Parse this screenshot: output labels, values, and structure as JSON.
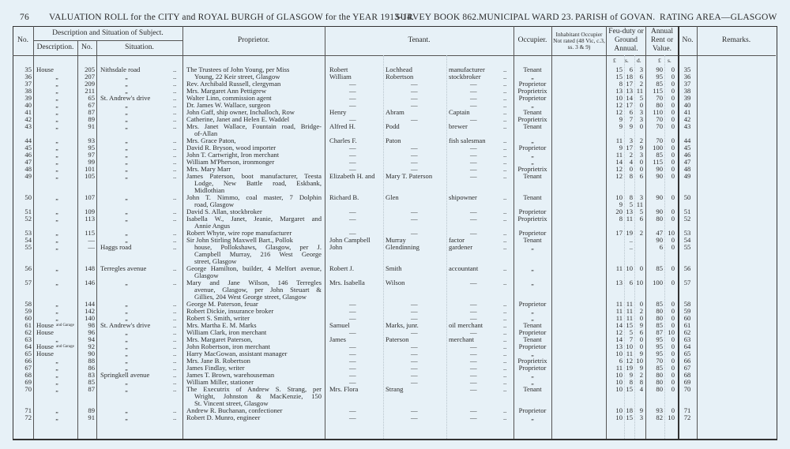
{
  "header": {
    "page_number": "76",
    "title": "VALUATION ROLL for the CITY and ROYAL BURGH of GLASGOW for the YEAR 1913-14.",
    "survey_book": "SURVEY BOOK 862.",
    "ward": "MUNICIPAL WARD 23.",
    "parish": "PARISH of GOVAN.",
    "rating_area": "RATING AREA—GLASGOW"
  },
  "columns": {
    "no": "No.",
    "desc_group": "Description and Situation of Subject.",
    "description": "Description.",
    "number": "No.",
    "situation": "Situation.",
    "proprietor": "Proprietor.",
    "tenant": "Tenant.",
    "occupier": "Occupier.",
    "inhabitant": "Inhabitant Occupier Not rated (48 Vic, c.3, ss. 3 & 9)",
    "feu_duty": "Feu-duty or Ground Annual.",
    "annual": "Annual Rent or Value.",
    "no_right": "No.",
    "remarks": "Remarks.",
    "units_feu": [
      "£",
      "s.",
      "d."
    ],
    "units_annual": [
      "£",
      "s."
    ]
  },
  "leader": "..",
  "rows": [
    {
      "no": "35",
      "desc": "House",
      "num": "205",
      "sit": "Nithsdale road",
      "prop": [
        "The Trustees of John Young, per Miss"
      ],
      "tf": "Robert",
      "ts": "Lochhead",
      "to": "manufacturer",
      "occ": "Tenant",
      "feu": [
        [
          "15",
          "6",
          "3"
        ]
      ],
      "ann": [
        "90",
        "0"
      ]
    },
    {
      "no": "36",
      "desc": "„",
      "num": "207",
      "sit": "„",
      "prop": [
        "Young, 22 Keir street, Glasgow"
      ],
      "cont": true,
      "tf": "William",
      "ts": "Robertson",
      "to": "stockbroker",
      "occ": "„",
      "feu": [
        [
          "15",
          "18",
          "6"
        ]
      ],
      "ann": [
        "95",
        "0"
      ]
    },
    {
      "no": "37",
      "desc": "„",
      "num": "209",
      "sit": "„",
      "prop": [
        "Rev. Archibald Russell, clergyman"
      ],
      "tf": "—",
      "ts": "—",
      "to": "—",
      "occ": "Proprietor",
      "feu": [
        [
          "8",
          "17",
          "2"
        ]
      ],
      "ann": [
        "85",
        "0"
      ]
    },
    {
      "no": "38",
      "desc": "„",
      "num": "211",
      "sit": "„",
      "prop": [
        "Mrs. Margaret Ann Pettigrew"
      ],
      "tf": "—",
      "ts": "—",
      "to": "—",
      "occ": "Proprietrix",
      "feu": [
        [
          "13",
          "13",
          "11"
        ]
      ],
      "ann": [
        "115",
        "0"
      ]
    },
    {
      "no": "39",
      "desc": "„",
      "num": "65",
      "sit": "St. Andrew's drive",
      "prop": [
        "Walter Linn, commission agent"
      ],
      "tf": "—",
      "ts": "—",
      "to": "—",
      "occ": "Proprietor",
      "feu": [
        [
          "10",
          "14",
          "5"
        ]
      ],
      "ann": [
        "70",
        "0"
      ]
    },
    {
      "no": "40",
      "desc": "„",
      "num": "67",
      "sit": "„",
      "prop": [
        "Dr. James W. Wallace, surgeon"
      ],
      "tf": "—",
      "ts": "—",
      "to": "—",
      "occ": "„",
      "feu": [
        [
          "12",
          "17",
          "0"
        ]
      ],
      "ann": [
        "80",
        "0"
      ]
    },
    {
      "no": "41",
      "desc": "„",
      "num": "87",
      "sit": "„",
      "prop": [
        "John Gaff, ship owner, Inchalloch, Row"
      ],
      "tf": "Henry",
      "ts": "Abram",
      "to": "Captain",
      "occ": "Tenant",
      "feu": [
        [
          "12",
          "6",
          "3"
        ]
      ],
      "ann": [
        "110",
        "0"
      ]
    },
    {
      "no": "42",
      "desc": "„",
      "num": "89",
      "sit": "„",
      "prop": [
        "Catherine, Janet and Helen E. Waddel"
      ],
      "tf": "—",
      "ts": "—",
      "to": "—",
      "occ": "Proprietrix",
      "feu": [
        [
          "9",
          "7",
          "3"
        ]
      ],
      "ann": [
        "70",
        "0"
      ]
    },
    {
      "no": "43",
      "desc": "„",
      "num": "91",
      "sit": "„",
      "prop": [
        "Mrs. Janet Wallace, Fountain road, Bridge-",
        "of-Allan"
      ],
      "tf": "Alfred H.",
      "ts": "Podd",
      "to": "brewer",
      "occ": "Tenant",
      "feu": [
        [
          "9",
          "9",
          "0"
        ]
      ],
      "ann": [
        "70",
        "0"
      ]
    },
    {
      "no": "44",
      "desc": "„",
      "num": "93",
      "sit": "„",
      "prop": [
        "Mrs. Grace Paton,"
      ],
      "tf": "Charles F.",
      "ts": "Paton",
      "to": "fish salesman",
      "occ": "„",
      "feu": [
        [
          "11",
          "3",
          "2"
        ]
      ],
      "ann": [
        "70",
        "0"
      ]
    },
    {
      "no": "45",
      "desc": "„",
      "num": "95",
      "sit": "„",
      "prop": [
        "David R. Bryson, wood importer"
      ],
      "tf": "—",
      "ts": "—",
      "to": "—",
      "occ": "Proprietor",
      "feu": [
        [
          "9",
          "17",
          "9"
        ]
      ],
      "ann": [
        "100",
        "0"
      ]
    },
    {
      "no": "46",
      "desc": "„",
      "num": "97",
      "sit": "„",
      "prop": [
        "John T. Cartwright, Iron merchant"
      ],
      "tf": "—",
      "ts": "—",
      "to": "—",
      "occ": "„",
      "feu": [
        [
          "11",
          "2",
          "3"
        ]
      ],
      "ann": [
        "85",
        "0"
      ]
    },
    {
      "no": "47",
      "desc": "„",
      "num": "99",
      "sit": "„",
      "prop": [
        "William M'Pherson, ironmonger"
      ],
      "tf": "—",
      "ts": "—",
      "to": "—",
      "occ": "„",
      "feu": [
        [
          "14",
          "4",
          "0"
        ]
      ],
      "ann": [
        "115",
        "0"
      ]
    },
    {
      "no": "48",
      "desc": "„",
      "num": "101",
      "sit": "„",
      "prop": [
        "Mrs. Mary Marr"
      ],
      "tf": "—",
      "ts": "—",
      "to": "—",
      "occ": "Proprietrix",
      "feu": [
        [
          "12",
          "0",
          "0"
        ]
      ],
      "ann": [
        "90",
        "0"
      ]
    },
    {
      "no": "49",
      "desc": "„",
      "num": "105",
      "sit": "„",
      "prop": [
        "James Paterson, boot manufacturer, Teesta",
        "Lodge, New Battle road, Eskbank,",
        "Midlothian"
      ],
      "tf": "Elizabeth H. and",
      "ts": "Mary T. Paterson",
      "to": "—",
      "occ": "Tenant",
      "feu": [
        [
          "12",
          "8",
          "6"
        ]
      ],
      "ann": [
        "90",
        "0"
      ]
    },
    {
      "no": "50",
      "desc": "„",
      "num": "107",
      "sit": "„",
      "prop": [
        "John T. Nimmo, coal master, 7 Dolphin",
        "road, Glasgow"
      ],
      "tf": "Richard B.",
      "ts": "Glen",
      "to": "shipowner",
      "occ": "Tenant",
      "feu": [
        [
          "10",
          "8",
          "3"
        ],
        [
          "9",
          "5",
          "11"
        ]
      ],
      "ann": [
        "90",
        "0"
      ]
    },
    {
      "no": "51",
      "desc": "„",
      "num": "109",
      "sit": "„",
      "prop": [
        "David S. Allan, stockbroker"
      ],
      "tf": "—",
      "ts": "—",
      "to": "—",
      "occ": "Proprietor",
      "feu": [
        [
          "20",
          "13",
          "5"
        ]
      ],
      "ann": [
        "90",
        "0"
      ]
    },
    {
      "no": "52",
      "desc": "„",
      "num": "113",
      "sit": "„",
      "prop": [
        "Isabella W., Janet, Jeanie, Margaret and",
        "Annie Angus"
      ],
      "tf": "—",
      "ts": "—",
      "to": "—",
      "occ": "Proprietrix",
      "feu": [
        [
          "8",
          "11",
          "6"
        ]
      ],
      "ann": [
        "80",
        "0"
      ]
    },
    {
      "no": "53",
      "desc": "„",
      "num": "115",
      "sit": "„",
      "prop": [
        "Robert Whyte, wire rope manufacturer"
      ],
      "tf": "—",
      "ts": "—",
      "to": "—",
      "occ": "Proprietor",
      "feu": [
        [
          "17",
          "19",
          "2"
        ]
      ],
      "ann": [
        "47",
        "10"
      ]
    },
    {
      "no": "54",
      "desc": "„",
      "num": "—",
      "sit": "„",
      "prop": [
        "Sir John Stirling Maxwell Bart., Pollok"
      ],
      "tf": "John Campbell",
      "ts": "Murray",
      "to": "factor",
      "occ": "Tenant",
      "feu": [
        [
          "",
          "..",
          ""
        ]
      ],
      "ann": [
        "90",
        "0"
      ]
    },
    {
      "no": "55",
      "desc": "„",
      "num": "—",
      "sit": "Haggs road",
      "prop": [
        "house, Pollokshaws, Glasgow, per J.",
        "Campbell Murray, 216 West George",
        "street, Glasgow"
      ],
      "cont": true,
      "tf": "John",
      "ts": "Glendinning",
      "to": "gardener",
      "occ": "„",
      "feu": [
        [
          "",
          "..",
          ""
        ]
      ],
      "ann": [
        "6",
        "0"
      ]
    },
    {
      "no": "56",
      "desc": "„",
      "num": "148",
      "sit": "Terregles avenue",
      "prop": [
        "George Hamilton, builder, 4 Melfort avenue,",
        "Glasgow"
      ],
      "tf": "Robert J.",
      "ts": "Smith",
      "to": "accountant",
      "occ": "„",
      "feu": [
        [
          "11",
          "10",
          "0"
        ]
      ],
      "ann": [
        "85",
        "0"
      ]
    },
    {
      "no": "57",
      "desc": "„",
      "num": "146",
      "sit": "„",
      "prop": [
        "Mary and Jane Wilson, 146 Terregles",
        "avenue, Glasgow, per John Steuart &",
        "Gillies, 204 West George street, Glasgow"
      ],
      "tf": "Mrs. Isabella",
      "ts": "Wilson",
      "to": "—",
      "occ": "„",
      "feu": [
        [
          "13",
          "6",
          "10"
        ]
      ],
      "ann": [
        "100",
        "0"
      ]
    },
    {
      "no": "58",
      "desc": "„",
      "num": "144",
      "sit": "„",
      "prop": [
        "George M. Paterson, feuar"
      ],
      "tf": "—",
      "ts": "—",
      "to": "—",
      "occ": "Proprietor",
      "feu": [
        [
          "11",
          "11",
          "0"
        ]
      ],
      "ann": [
        "85",
        "0"
      ]
    },
    {
      "no": "59",
      "desc": "„",
      "num": "142",
      "sit": "„",
      "prop": [
        "Robert Dickie, insurance broker"
      ],
      "tf": "—",
      "ts": "—",
      "to": "—",
      "occ": "„",
      "feu": [
        [
          "11",
          "11",
          "2"
        ]
      ],
      "ann": [
        "80",
        "0"
      ]
    },
    {
      "no": "60",
      "desc": "„",
      "num": "140",
      "sit": "„",
      "prop": [
        "Robert S. Smith, writer"
      ],
      "tf": "—",
      "ts": "—",
      "to": "—",
      "occ": "„",
      "feu": [
        [
          "11",
          "11",
          "0"
        ]
      ],
      "ann": [
        "80",
        "0"
      ]
    },
    {
      "no": "61",
      "desc": "House",
      "desc_sup": "and Garage",
      "num": "98",
      "sit": "St. Andrew's drive",
      "prop": [
        "Mrs. Martha E. M. Marks"
      ],
      "tf": "Samuel",
      "ts": "Marks, junr.",
      "to": "oil merchant",
      "occ": "Tenant",
      "feu": [
        [
          "14",
          "15",
          "9"
        ]
      ],
      "ann": [
        "85",
        "0"
      ]
    },
    {
      "no": "62",
      "desc": "House",
      "num": "96",
      "sit": "„",
      "prop": [
        "William Clark, iron merchant"
      ],
      "tf": "—",
      "ts": "—",
      "to": "—",
      "occ": "Proprietor",
      "feu": [
        [
          "12",
          "5",
          "6"
        ]
      ],
      "ann": [
        "87",
        "10"
      ]
    },
    {
      "no": "63",
      "desc": "„",
      "num": "94",
      "sit": "„",
      "prop": [
        "Mrs. Margaret Paterson,"
      ],
      "tf": "James",
      "ts": "Paterson",
      "to": "merchant",
      "occ": "Tenant",
      "feu": [
        [
          "14",
          "7",
          "0"
        ]
      ],
      "ann": [
        "95",
        "0"
      ]
    },
    {
      "no": "64",
      "desc": "House",
      "desc_sup": "and Garage",
      "num": "92",
      "sit": "„",
      "prop": [
        "John Robertson, iron merchant"
      ],
      "tf": "—",
      "ts": "—",
      "to": "—",
      "occ": "Proprietor",
      "feu": [
        [
          "13",
          "10",
          "0"
        ]
      ],
      "ann": [
        "95",
        "0"
      ]
    },
    {
      "no": "65",
      "desc": "House",
      "num": "90",
      "sit": "„",
      "prop": [
        "Harry MacGowan, assistant manager"
      ],
      "tf": "—",
      "ts": "—",
      "to": "—",
      "occ": "„",
      "feu": [
        [
          "10",
          "11",
          "9"
        ]
      ],
      "ann": [
        "95",
        "0"
      ]
    },
    {
      "no": "66",
      "desc": "„",
      "num": "88",
      "sit": "„",
      "prop": [
        "Mrs. Jane B. Robertson"
      ],
      "tf": "—",
      "ts": "—",
      "to": "—",
      "occ": "Proprietrix",
      "feu": [
        [
          "6",
          "12",
          "10"
        ]
      ],
      "ann": [
        "70",
        "0"
      ]
    },
    {
      "no": "67",
      "desc": "„",
      "num": "86",
      "sit": "„",
      "prop": [
        "James Findlay, writer"
      ],
      "tf": "—",
      "ts": "—",
      "to": "—",
      "occ": "Proprietor",
      "feu": [
        [
          "11",
          "19",
          "9"
        ]
      ],
      "ann": [
        "85",
        "0"
      ]
    },
    {
      "no": "68",
      "desc": "„",
      "num": "83",
      "sit": "Springkell avenue",
      "prop": [
        "James T. Brown, warehouseman"
      ],
      "tf": "—",
      "ts": "—",
      "to": "—",
      "occ": "„",
      "feu": [
        [
          "10",
          "9",
          "2"
        ]
      ],
      "ann": [
        "80",
        "0"
      ]
    },
    {
      "no": "69",
      "desc": "„",
      "num": "85",
      "sit": "„",
      "prop": [
        "William Miller, stationer"
      ],
      "tf": "—",
      "ts": "—",
      "to": "—",
      "occ": "„",
      "feu": [
        [
          "10",
          "8",
          "8"
        ]
      ],
      "ann": [
        "80",
        "0"
      ]
    },
    {
      "no": "70",
      "desc": "„",
      "num": "87",
      "sit": "„",
      "prop": [
        "The Executrix of Andrew S. Strang, per",
        "Wright, Johnston & MacKenzie, 150",
        "St. Vincent street, Glasgow"
      ],
      "tf": "Mrs. Flora",
      "ts": "Strang",
      "to": "—",
      "occ": "Tenant",
      "feu": [
        [
          "10",
          "15",
          "4"
        ]
      ],
      "ann": [
        "80",
        "0"
      ]
    },
    {
      "no": "71",
      "desc": "„",
      "num": "89",
      "sit": "„",
      "prop": [
        "Andrew R. Buchanan, confectioner"
      ],
      "tf": "—",
      "ts": "—",
      "to": "—",
      "occ": "Proprietor",
      "feu": [
        [
          "10",
          "18",
          "9"
        ]
      ],
      "ann": [
        "93",
        "0"
      ]
    },
    {
      "no": "72",
      "desc": "„",
      "num": "91",
      "sit": "„",
      "prop": [
        "Robert D. Munro, engineer"
      ],
      "tf": "—",
      "ts": "—",
      "to": "—",
      "occ": "„",
      "feu": [
        [
          "10",
          "15",
          "3"
        ]
      ],
      "ann": [
        "82",
        "10"
      ]
    }
  ]
}
